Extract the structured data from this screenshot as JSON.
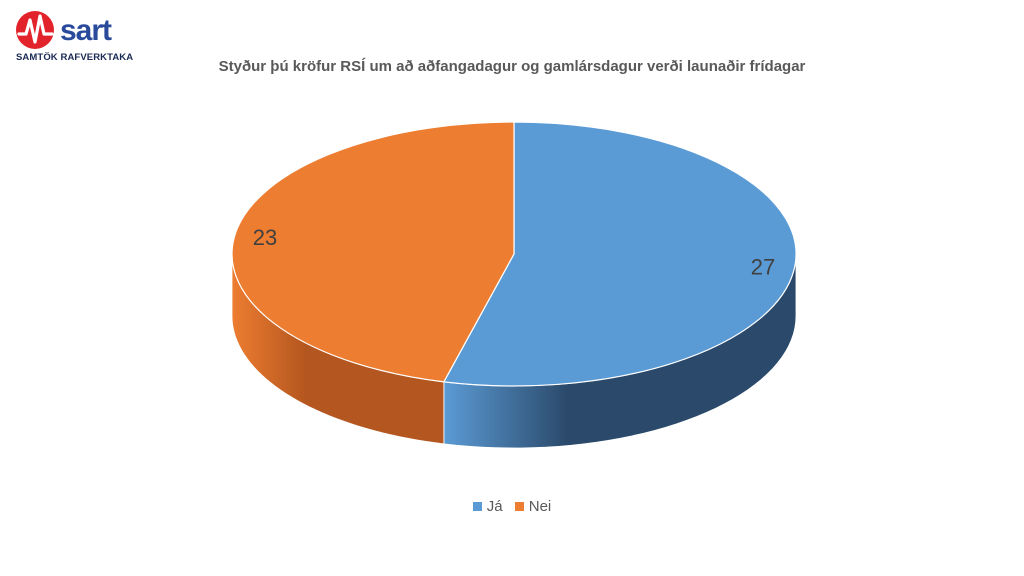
{
  "logo": {
    "word": "sart",
    "subtitle": "SAMTÖK RAFVERKTAKA",
    "red": "#e3232b",
    "blue": "#2a4a9c"
  },
  "chart_data": {
    "type": "pie",
    "title": "Styður þú kröfur RSÍ um að aðfangadagur og gamlársdagur verði launaðir frídagar",
    "categories": [
      "Já",
      "Nei"
    ],
    "values": [
      27,
      23
    ],
    "colors": [
      "#5b9bd5",
      "#ed7d31"
    ],
    "side_colors": [
      "#2b4a6b",
      "#b4561f"
    ],
    "style": "3d",
    "legend_position": "bottom",
    "data_labels": [
      "27",
      "23"
    ]
  }
}
